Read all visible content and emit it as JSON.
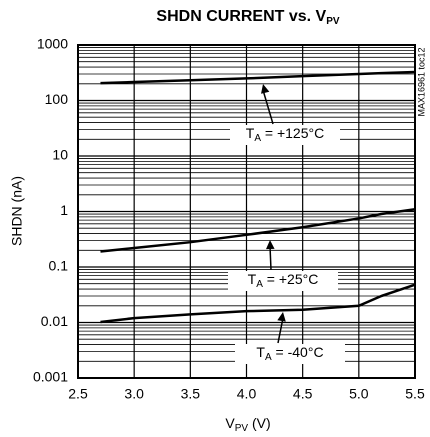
{
  "chart_data": {
    "type": "line",
    "title": [
      "SHDN CURRENT vs. V",
      "PV"
    ],
    "x_label": [
      "V",
      "PV",
      " (V)"
    ],
    "y_label": "SHDN (nA)",
    "side_note": "MAX16961 toc12",
    "x": [
      2.7,
      3.0,
      3.5,
      4.0,
      4.5,
      5.0,
      5.2,
      5.5
    ],
    "series": [
      {
        "name": [
          "T",
          "A",
          " = +125°C"
        ],
        "color": "#000000",
        "values": [
          206,
          215,
          232,
          250,
          275,
          300,
          312,
          326
        ]
      },
      {
        "name": [
          "T",
          "A",
          " = +25°C"
        ],
        "color": "#000000",
        "values": [
          0.19,
          0.22,
          0.28,
          0.38,
          0.52,
          0.75,
          0.9,
          1.1
        ]
      },
      {
        "name": [
          "T",
          "A",
          " = -40°C"
        ],
        "color": "#000000",
        "values": [
          0.0102,
          0.012,
          0.014,
          0.016,
          0.017,
          0.02,
          0.03,
          0.048
        ]
      }
    ],
    "xlim": [
      2.5,
      5.5
    ],
    "xticks": [
      2.5,
      {
        "value": 3,
        "label": "3.0"
      },
      3.5,
      {
        "value": 4,
        "label": "4.0"
      },
      4.5,
      {
        "value": 5,
        "label": "5.0"
      },
      5.5
    ],
    "ylim": [
      0.001,
      1000
    ],
    "yticks": [
      0.001,
      0.01,
      0.1,
      1,
      10,
      100,
      1000
    ],
    "log_y": true,
    "grid": true
  }
}
